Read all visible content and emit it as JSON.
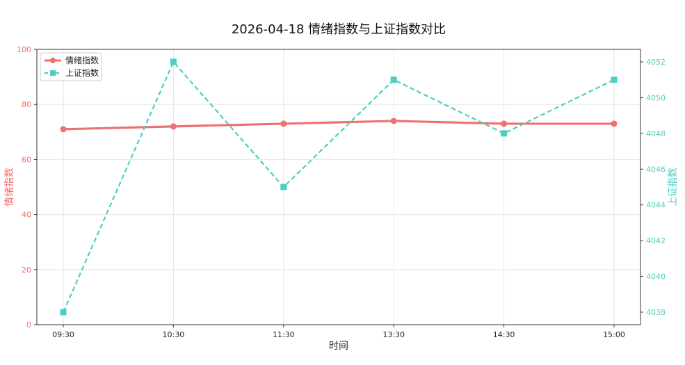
{
  "chart_data": {
    "type": "line",
    "title": "2026-04-18 情绪指数与上证指数对比",
    "xlabel": "时间",
    "categories": [
      "09:30",
      "10:30",
      "11:30",
      "13:30",
      "14:30",
      "15:00"
    ],
    "grid": true,
    "legend_position": "top-left",
    "series": [
      {
        "name": "情绪指数",
        "axis": "left",
        "color": "#f07070",
        "line_style": "solid",
        "marker": "circle",
        "values": [
          71,
          72,
          73,
          74,
          73,
          73
        ]
      },
      {
        "name": "上证指数",
        "axis": "right",
        "color": "#4ecdc4",
        "line_style": "dashed",
        "marker": "square",
        "values": [
          4038,
          4052,
          4045,
          4051,
          4048,
          4051
        ]
      }
    ],
    "y_left": {
      "label": "情绪指数",
      "color": "#f07070",
      "ylim": [
        0,
        100
      ],
      "ticks": [
        "0",
        "20",
        "40",
        "60",
        "80",
        "100"
      ]
    },
    "y_right": {
      "label": "上证指数",
      "color": "#4ecdc4",
      "ylim": [
        4037.3,
        4052.7
      ],
      "ticks": [
        "4038",
        "4040",
        "4042",
        "4044",
        "4046",
        "4048",
        "4050",
        "4052"
      ]
    }
  }
}
